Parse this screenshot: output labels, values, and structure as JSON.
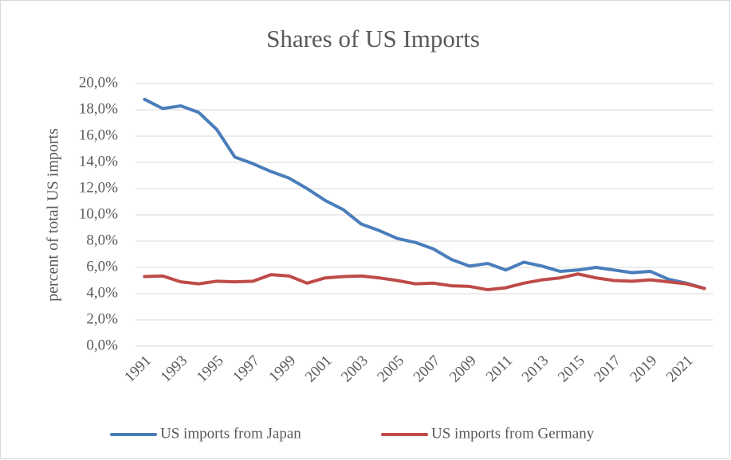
{
  "chart_data": {
    "type": "line",
    "title": "Shares of US Imports",
    "y_label": "percent of total US imports",
    "categories": [
      "1991",
      null,
      "1993",
      null,
      "1995",
      null,
      "1997",
      null,
      "1999",
      null,
      "2001",
      null,
      "2003",
      null,
      "2005",
      null,
      "2007",
      null,
      "2009",
      null,
      "2011",
      null,
      "2013",
      null,
      "2015",
      null,
      "2017",
      null,
      "2019",
      null,
      "2021",
      null
    ],
    "series": [
      {
        "name": "US imports from Japan",
        "color": "#4a7ebb",
        "values": [
          18.8,
          18.1,
          18.3,
          17.8,
          16.5,
          14.4,
          13.9,
          13.3,
          12.8,
          12.0,
          11.1,
          10.4,
          9.3,
          8.8,
          8.2,
          7.9,
          7.4,
          6.6,
          6.1,
          6.3,
          5.8,
          6.4,
          6.1,
          5.7,
          5.8,
          6.0,
          5.8,
          5.6,
          5.7,
          5.1,
          4.8,
          4.4
        ]
      },
      {
        "name": "US imports from Germany",
        "color": "#be4b48",
        "values": [
          5.3,
          5.35,
          4.9,
          4.75,
          4.95,
          4.9,
          4.95,
          5.45,
          5.35,
          4.8,
          5.2,
          5.3,
          5.35,
          5.2,
          5.0,
          4.75,
          4.8,
          4.6,
          4.55,
          4.3,
          4.45,
          4.8,
          5.05,
          5.2,
          5.5,
          5.2,
          5.0,
          4.95,
          5.05,
          4.9,
          4.75,
          4.4
        ]
      }
    ],
    "ylim": [
      0,
      20
    ],
    "yticks": [
      {
        "value": 0,
        "label": "0,0%"
      },
      {
        "value": 2,
        "label": "2,0%"
      },
      {
        "value": 4,
        "label": "4,0%"
      },
      {
        "value": 6,
        "label": "6,0%"
      },
      {
        "value": 8,
        "label": "8,0%"
      },
      {
        "value": 10,
        "label": "10,0%"
      },
      {
        "value": 12,
        "label": "12,0%"
      },
      {
        "value": 14,
        "label": "14,0%"
      },
      {
        "value": 16,
        "label": "16,0%"
      },
      {
        "value": 18,
        "label": "18,0%"
      },
      {
        "value": 20,
        "label": "20,0%"
      }
    ],
    "grid": true,
    "legend": "bottom"
  }
}
